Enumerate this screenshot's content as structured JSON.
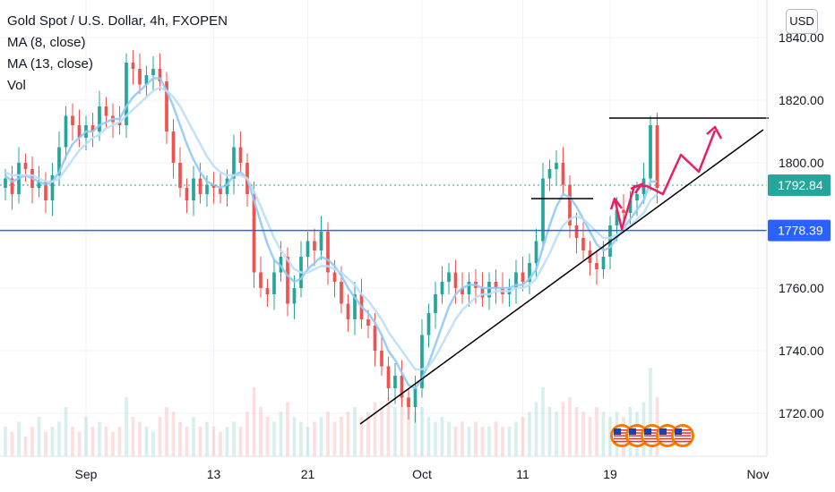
{
  "header": {
    "title": "Gold Spot / U.S. Dollar, 4h, FXOPEN",
    "indicators": [
      "MA (8, close)",
      "MA (13, close)",
      "Vol"
    ],
    "currency_button": "USD"
  },
  "colors": {
    "up": "#26a69a",
    "down": "#ef5350",
    "ma": "#90caf9",
    "support_line": "#2962ff",
    "current_price": "#26a69a",
    "drawing": "#e91e63",
    "trend": "#000000"
  },
  "chart_data": {
    "type": "candlestick",
    "symbol": "Gold Spot / U.S. Dollar",
    "interval": "4h",
    "ylim": [
      1710,
      1850
    ],
    "y_ticks": [
      1720,
      1740,
      1760,
      1780,
      1800,
      1820,
      1840
    ],
    "y_tick_labels": [
      "1720.00",
      "1740.00",
      "1760.00",
      "1780.00",
      "1800.00",
      "1820.00",
      "1840.00"
    ],
    "x_ticks": [
      {
        "label": "Sep",
        "bar": 12
      },
      {
        "label": "13",
        "bar": 31
      },
      {
        "label": "21",
        "bar": 45
      },
      {
        "label": "Oct",
        "bar": 62
      },
      {
        "label": "11",
        "bar": 77
      },
      {
        "label": "19",
        "bar": 90
      },
      {
        "label": "Nov",
        "bar": 112
      }
    ],
    "current_price": {
      "value": 1792.84,
      "label": "1792.84"
    },
    "horizontal_line": {
      "value": 1778.39,
      "label": "1778.39"
    },
    "closes": [
      1795,
      1790,
      1800,
      1798,
      1792,
      1794,
      1788,
      1796,
      1805,
      1815,
      1812,
      1808,
      1812,
      1810,
      1818,
      1815,
      1813,
      1812,
      1832,
      1830,
      1825,
      1828,
      1830,
      1826,
      1810,
      1800,
      1792,
      1788,
      1795,
      1790,
      1793,
      1792,
      1790,
      1795,
      1805,
      1800,
      1790,
      1765,
      1760,
      1758,
      1765,
      1770,
      1755,
      1760,
      1770,
      1775,
      1772,
      1778,
      1765,
      1762,
      1755,
      1750,
      1758,
      1750,
      1748,
      1740,
      1735,
      1728,
      1732,
      1725,
      1722,
      1728,
      1745,
      1752,
      1758,
      1762,
      1765,
      1760,
      1758,
      1762,
      1760,
      1757,
      1762,
      1760,
      1758,
      1760,
      1765,
      1762,
      1768,
      1775,
      1795,
      1798,
      1800,
      1793,
      1780,
      1776,
      1772,
      1768,
      1766,
      1770,
      1780,
      1785,
      1784,
      1788,
      1790,
      1795,
      1812,
      1792
    ],
    "ma_fast": [
      1796,
      1794,
      1795,
      1796,
      1795,
      1794,
      1793,
      1794,
      1797,
      1802,
      1806,
      1808,
      1810,
      1810,
      1812,
      1813,
      1814,
      1814,
      1818,
      1821,
      1823,
      1825,
      1827,
      1827,
      1823,
      1818,
      1812,
      1806,
      1801,
      1797,
      1794,
      1793,
      1792,
      1793,
      1796,
      1797,
      1795,
      1788,
      1781,
      1774,
      1769,
      1767,
      1764,
      1762,
      1763,
      1766,
      1768,
      1770,
      1769,
      1767,
      1764,
      1760,
      1757,
      1754,
      1752,
      1749,
      1745,
      1740,
      1737,
      1733,
      1729,
      1728,
      1731,
      1736,
      1742,
      1748,
      1754,
      1758,
      1760,
      1761,
      1761,
      1760,
      1760,
      1760,
      1760,
      1760,
      1761,
      1761,
      1763,
      1766,
      1773,
      1780,
      1786,
      1790,
      1789,
      1786,
      1782,
      1778,
      1774,
      1772,
      1773,
      1776,
      1779,
      1782,
      1785,
      1788,
      1794,
      1794
    ],
    "ma_slow": [
      1797,
      1796,
      1796,
      1796,
      1796,
      1795,
      1794,
      1794,
      1795,
      1798,
      1801,
      1804,
      1806,
      1808,
      1809,
      1811,
      1812,
      1813,
      1815,
      1817,
      1819,
      1821,
      1823,
      1824,
      1823,
      1821,
      1818,
      1814,
      1810,
      1806,
      1802,
      1799,
      1797,
      1796,
      1796,
      1796,
      1795,
      1791,
      1786,
      1781,
      1776,
      1772,
      1769,
      1766,
      1765,
      1765,
      1766,
      1767,
      1767,
      1766,
      1765,
      1763,
      1761,
      1758,
      1756,
      1753,
      1750,
      1746,
      1743,
      1740,
      1737,
      1734,
      1734,
      1735,
      1738,
      1742,
      1746,
      1750,
      1753,
      1755,
      1757,
      1758,
      1758,
      1759,
      1759,
      1759,
      1760,
      1760,
      1761,
      1763,
      1767,
      1771,
      1776,
      1780,
      1782,
      1783,
      1782,
      1780,
      1778,
      1776,
      1776,
      1777,
      1778,
      1780,
      1782,
      1784,
      1788,
      1790
    ],
    "volume": [
      0.3,
      0.25,
      0.35,
      0.2,
      0.3,
      0.4,
      0.25,
      0.3,
      0.35,
      0.5,
      0.3,
      0.25,
      0.4,
      0.3,
      0.35,
      0.3,
      0.25,
      0.3,
      0.6,
      0.4,
      0.35,
      0.3,
      0.25,
      0.4,
      0.5,
      0.45,
      0.35,
      0.3,
      0.4,
      0.3,
      0.35,
      0.3,
      0.25,
      0.3,
      0.35,
      0.3,
      0.45,
      0.7,
      0.5,
      0.4,
      0.35,
      0.45,
      0.55,
      0.4,
      0.35,
      0.3,
      0.35,
      0.4,
      0.45,
      0.35,
      0.4,
      0.45,
      0.5,
      0.4,
      0.45,
      0.55,
      0.5,
      0.6,
      0.5,
      0.65,
      0.6,
      0.45,
      0.5,
      0.4,
      0.35,
      0.4,
      0.35,
      0.3,
      0.35,
      0.3,
      0.35,
      0.3,
      0.3,
      0.35,
      0.3,
      0.3,
      0.35,
      0.4,
      0.45,
      0.55,
      0.7,
      0.5,
      0.45,
      0.55,
      0.6,
      0.5,
      0.45,
      0.4,
      0.5,
      0.45,
      0.4,
      0.45,
      0.4,
      0.5,
      0.45,
      0.55,
      0.9,
      0.6
    ]
  }
}
